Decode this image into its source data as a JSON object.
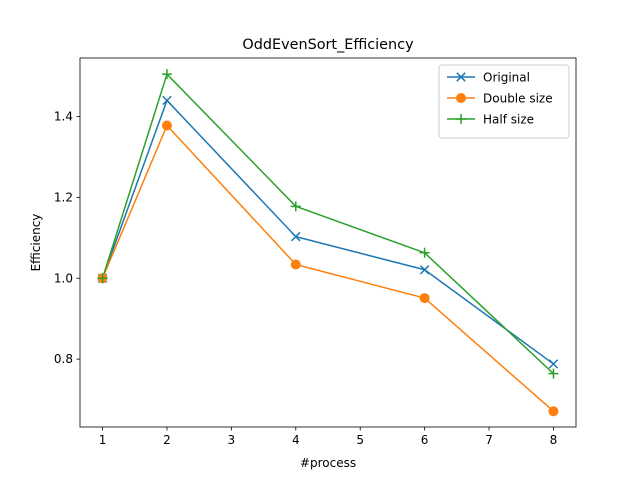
{
  "chart_data": {
    "type": "line",
    "title": "OddEvenSort_Efficiency",
    "xlabel": "#process",
    "ylabel": "Efficiency",
    "xlim": [
      0.65,
      8.35
    ],
    "ylim": [
      0.632,
      1.545
    ],
    "xticks": [
      1,
      2,
      3,
      4,
      5,
      6,
      7,
      8
    ],
    "xtick_labels": [
      "1",
      "2",
      "3",
      "4",
      "5",
      "6",
      "7",
      "8"
    ],
    "yticks": [
      0.8,
      1.0,
      1.2,
      1.4
    ],
    "ytick_labels": [
      "0.8",
      "1.0",
      "1.2",
      "1.4"
    ],
    "grid": false,
    "legend_position": "top-right",
    "x": [
      1,
      2,
      4,
      6,
      8
    ],
    "series": [
      {
        "name": "Original",
        "color": "#1f77b4",
        "marker": "x",
        "values": [
          1.0,
          1.44,
          1.103,
          1.021,
          0.788
        ]
      },
      {
        "name": "Double size",
        "color": "#ff7f0e",
        "marker": "o",
        "values": [
          1.0,
          1.378,
          1.034,
          0.951,
          0.671
        ]
      },
      {
        "name": "Half size",
        "color": "#2ca02c",
        "marker": "+",
        "values": [
          1.0,
          1.505,
          1.178,
          1.063,
          0.764
        ]
      }
    ]
  }
}
